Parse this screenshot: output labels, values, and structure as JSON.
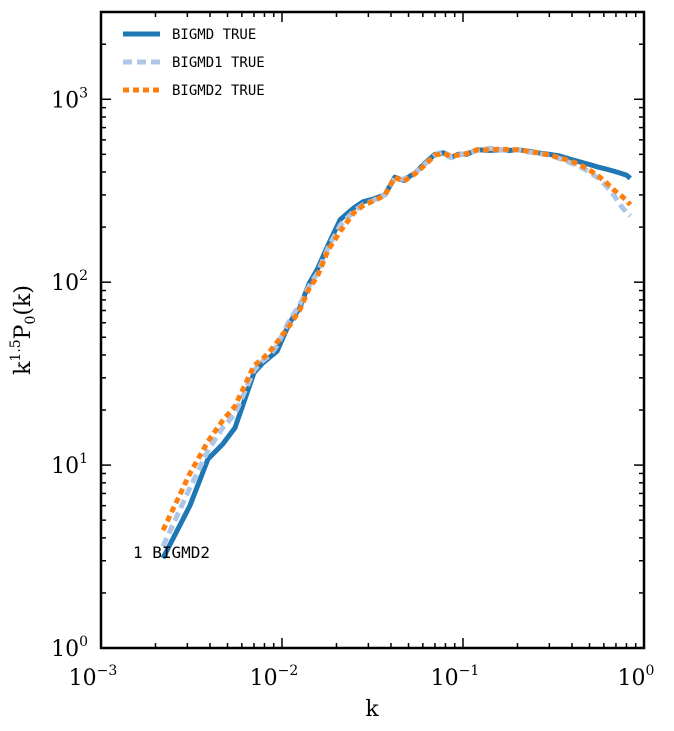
{
  "chart_data": {
    "type": "line",
    "title": "",
    "xlabel": "k",
    "ylabel": {
      "base": "k",
      "exp": "1.5",
      "rest": "P",
      "sub": "0",
      "tail": "(k)"
    },
    "xscale": "log",
    "yscale": "log",
    "xlim": [
      0.001,
      1.0
    ],
    "ylim": [
      1.0,
      3000.0
    ],
    "x_ticks": [
      {
        "value": 0.001,
        "base": "10",
        "exp": "−3"
      },
      {
        "value": 0.01,
        "base": "10",
        "exp": "−2"
      },
      {
        "value": 0.1,
        "base": "10",
        "exp": "−1"
      },
      {
        "value": 1.0,
        "base": "10",
        "exp": "0"
      }
    ],
    "y_ticks": [
      {
        "value": 1,
        "base": "10",
        "exp": "0"
      },
      {
        "value": 10,
        "base": "10",
        "exp": "1"
      },
      {
        "value": 100,
        "base": "10",
        "exp": "2"
      },
      {
        "value": 1000,
        "base": "10",
        "exp": "3"
      }
    ],
    "grid": false,
    "legend_position": "top-left",
    "annotation": "1 BIGMD2",
    "series": [
      {
        "name": "BIGMD TRUE",
        "color": "#1f77b4",
        "style": "solid",
        "x": [
          0.0022,
          0.0031,
          0.0039,
          0.0047,
          0.0055,
          0.007,
          0.0078,
          0.0086,
          0.0094,
          0.011,
          0.0125,
          0.0141,
          0.0157,
          0.018,
          0.021,
          0.025,
          0.028,
          0.032,
          0.037,
          0.042,
          0.047,
          0.055,
          0.062,
          0.07,
          0.078,
          0.086,
          0.094,
          0.105,
          0.12,
          0.14,
          0.16,
          0.18,
          0.2,
          0.23,
          0.26,
          0.3,
          0.34,
          0.39,
          0.44,
          0.5,
          0.56,
          0.62,
          0.68,
          0.74,
          0.8,
          0.84
        ],
        "y": [
          3.1,
          6.0,
          10.8,
          13.0,
          16.0,
          32.0,
          36.0,
          39.0,
          42.0,
          60.0,
          72.0,
          98.0,
          118.0,
          160.0,
          220.0,
          255.0,
          275.0,
          285.0,
          300.0,
          375.0,
          360.0,
          400.0,
          450.0,
          500.0,
          510.0,
          480.0,
          500.0,
          500.0,
          530.0,
          525.0,
          530.0,
          525.0,
          530.0,
          520.0,
          510.0,
          500.0,
          490.0,
          470.0,
          455.0,
          440.0,
          425.0,
          415.0,
          405.0,
          395.0,
          385.0,
          370.0
        ]
      },
      {
        "name": "BIGMD1 TRUE",
        "color": "#aec7e8",
        "style": "dashed",
        "x": [
          0.0022,
          0.0031,
          0.0039,
          0.0047,
          0.0055,
          0.007,
          0.0078,
          0.0086,
          0.0094,
          0.011,
          0.0125,
          0.0141,
          0.0157,
          0.018,
          0.021,
          0.025,
          0.028,
          0.032,
          0.037,
          0.042,
          0.047,
          0.055,
          0.062,
          0.07,
          0.078,
          0.086,
          0.094,
          0.105,
          0.12,
          0.14,
          0.16,
          0.18,
          0.2,
          0.23,
          0.26,
          0.3,
          0.34,
          0.39,
          0.44,
          0.5,
          0.56,
          0.62,
          0.68,
          0.74,
          0.8,
          0.84
        ],
        "y": [
          3.6,
          7.5,
          12.0,
          16.0,
          19.0,
          33.0,
          37.0,
          40.0,
          45.0,
          62.0,
          75.0,
          95.0,
          112.0,
          155.0,
          205.0,
          245.0,
          265.0,
          280.0,
          300.0,
          370.0,
          365.0,
          400.0,
          445.0,
          495.0,
          520.0,
          480.0,
          495.0,
          505.0,
          525.0,
          540.0,
          530.0,
          525.0,
          530.0,
          515.0,
          505.0,
          495.0,
          475.0,
          450.0,
          430.0,
          400.0,
          370.0,
          335.0,
          300.0,
          265.0,
          240.0,
          230.0
        ]
      },
      {
        "name": "BIGMD2 TRUE",
        "color": "#ff7f0e",
        "style": "dotted",
        "x": [
          0.0022,
          0.0031,
          0.0039,
          0.0047,
          0.0055,
          0.007,
          0.0078,
          0.0086,
          0.0094,
          0.011,
          0.0125,
          0.0141,
          0.0157,
          0.018,
          0.021,
          0.025,
          0.028,
          0.032,
          0.037,
          0.042,
          0.047,
          0.055,
          0.062,
          0.07,
          0.078,
          0.086,
          0.094,
          0.105,
          0.12,
          0.14,
          0.16,
          0.18,
          0.2,
          0.23,
          0.26,
          0.3,
          0.34,
          0.39,
          0.44,
          0.5,
          0.56,
          0.62,
          0.68,
          0.74,
          0.8,
          0.84
        ],
        "y": [
          4.4,
          9.0,
          13.5,
          17.5,
          21.0,
          35.0,
          38.0,
          42.0,
          47.0,
          58.0,
          70.0,
          92.0,
          108.0,
          150.0,
          190.0,
          240.0,
          262.0,
          278.0,
          298.0,
          375.0,
          355.0,
          395.0,
          440.0,
          495.0,
          505.0,
          490.0,
          495.0,
          505.0,
          530.0,
          528.0,
          535.0,
          530.0,
          530.0,
          520.0,
          510.0,
          495.0,
          480.0,
          460.0,
          440.0,
          410.0,
          380.0,
          350.0,
          320.0,
          300.0,
          280.0,
          265.0
        ]
      }
    ]
  }
}
